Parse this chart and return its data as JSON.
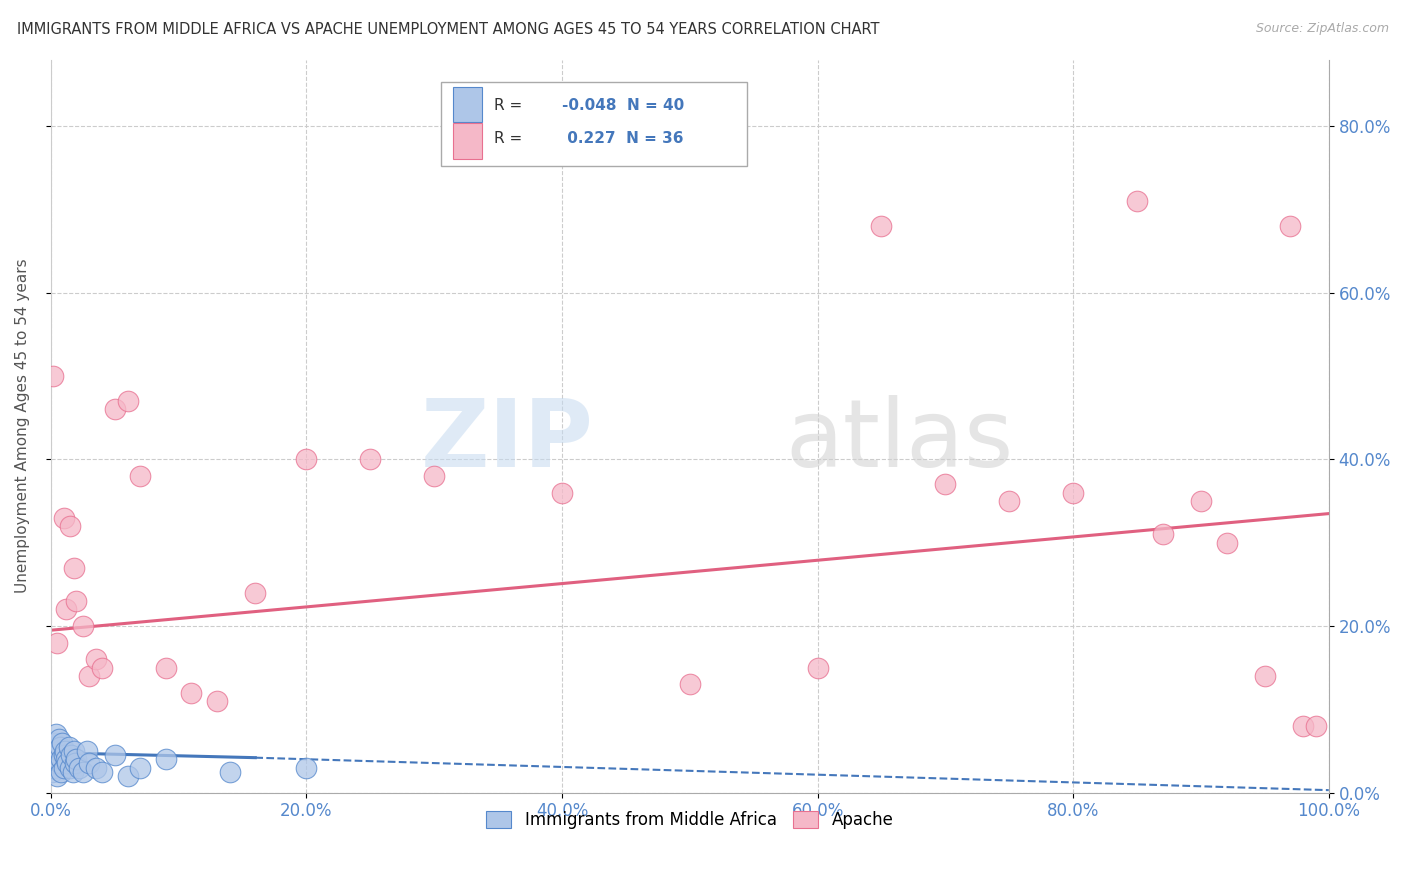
{
  "title": "IMMIGRANTS FROM MIDDLE AFRICA VS APACHE UNEMPLOYMENT AMONG AGES 45 TO 54 YEARS CORRELATION CHART",
  "source": "Source: ZipAtlas.com",
  "ylabel": "Unemployment Among Ages 45 to 54 years",
  "xlim": [
    0,
    1.0
  ],
  "ylim": [
    0,
    0.88
  ],
  "xticks": [
    0.0,
    0.2,
    0.4,
    0.6,
    0.8,
    1.0
  ],
  "yticks": [
    0.0,
    0.2,
    0.4,
    0.6,
    0.8
  ],
  "xtick_labels": [
    "0.0%",
    "20.0%",
    "40.0%",
    "60.0%",
    "80.0%",
    "100.0%"
  ],
  "ytick_labels": [
    "",
    "",
    "",
    "",
    ""
  ],
  "right_ytick_labels": [
    "0.0%",
    "20.0%",
    "40.0%",
    "60.0%",
    "80.0%"
  ],
  "blue_R": "-0.048",
  "blue_N": "40",
  "pink_R": "0.227",
  "pink_N": "36",
  "blue_fill": "#aec6e8",
  "pink_fill": "#f5b8c8",
  "blue_edge": "#5588cc",
  "pink_edge": "#e87090",
  "blue_line_color": "#4477bb",
  "pink_line_color": "#e06080",
  "background_color": "#ffffff",
  "grid_color": "#cccccc",
  "blue_scatter_x": [
    0.001,
    0.002,
    0.002,
    0.003,
    0.003,
    0.004,
    0.004,
    0.005,
    0.005,
    0.006,
    0.006,
    0.007,
    0.007,
    0.008,
    0.008,
    0.009,
    0.01,
    0.01,
    0.011,
    0.012,
    0.013,
    0.014,
    0.015,
    0.016,
    0.017,
    0.018,
    0.019,
    0.02,
    0.022,
    0.025,
    0.028,
    0.03,
    0.035,
    0.04,
    0.05,
    0.06,
    0.07,
    0.09,
    0.14,
    0.2
  ],
  "blue_scatter_y": [
    0.025,
    0.03,
    0.055,
    0.04,
    0.06,
    0.035,
    0.07,
    0.045,
    0.02,
    0.05,
    0.065,
    0.035,
    0.055,
    0.04,
    0.025,
    0.06,
    0.045,
    0.03,
    0.05,
    0.04,
    0.035,
    0.055,
    0.03,
    0.045,
    0.025,
    0.05,
    0.035,
    0.04,
    0.03,
    0.025,
    0.05,
    0.035,
    0.03,
    0.025,
    0.045,
    0.02,
    0.03,
    0.04,
    0.025,
    0.03
  ],
  "pink_scatter_x": [
    0.002,
    0.005,
    0.01,
    0.012,
    0.015,
    0.018,
    0.02,
    0.025,
    0.03,
    0.035,
    0.04,
    0.05,
    0.06,
    0.07,
    0.09,
    0.11,
    0.13,
    0.16,
    0.2,
    0.25,
    0.3,
    0.4,
    0.5,
    0.6,
    0.65,
    0.7,
    0.75,
    0.8,
    0.85,
    0.87,
    0.9,
    0.92,
    0.95,
    0.97,
    0.98,
    0.99
  ],
  "pink_scatter_y": [
    0.5,
    0.18,
    0.33,
    0.22,
    0.32,
    0.27,
    0.23,
    0.2,
    0.14,
    0.16,
    0.15,
    0.46,
    0.47,
    0.38,
    0.15,
    0.12,
    0.11,
    0.24,
    0.4,
    0.4,
    0.38,
    0.36,
    0.13,
    0.15,
    0.68,
    0.37,
    0.35,
    0.36,
    0.71,
    0.31,
    0.35,
    0.3,
    0.14,
    0.68,
    0.08,
    0.08
  ],
  "blue_trend_x": [
    0.0,
    0.16,
    1.0
  ],
  "blue_trend_y": [
    0.048,
    0.042,
    0.005
  ],
  "pink_trend_x": [
    0.0,
    1.0
  ],
  "pink_trend_y": [
    0.195,
    0.335
  ]
}
